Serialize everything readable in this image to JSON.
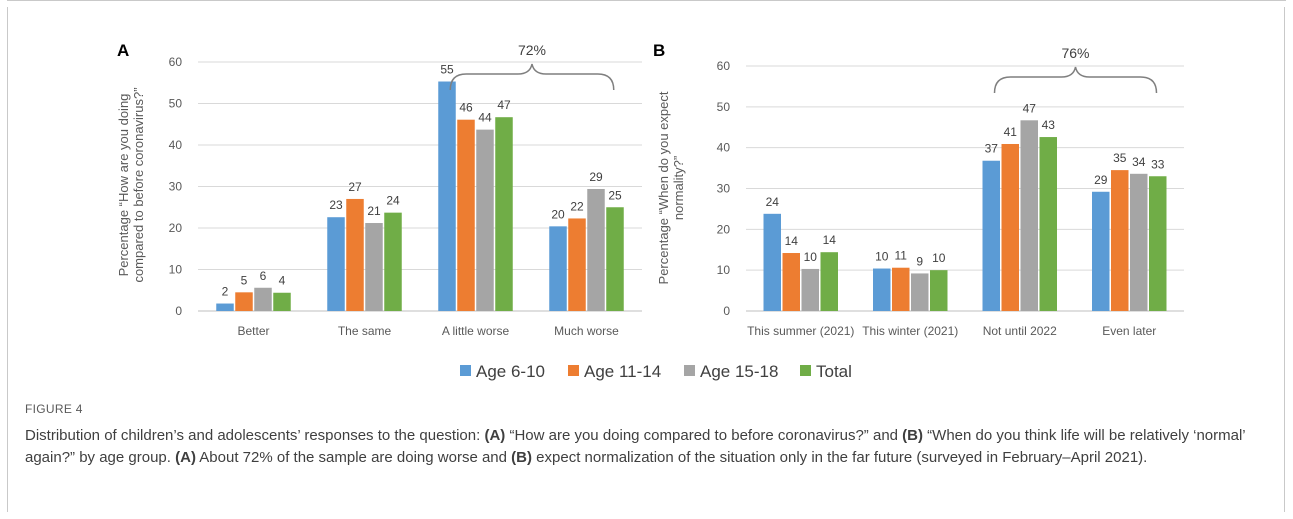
{
  "colors": {
    "series": [
      "#5b9bd5",
      "#ed7d31",
      "#a5a5a5",
      "#70ad47"
    ],
    "grid": "#d9d9d9",
    "axis": "#595959",
    "brace": "#7f7f7f"
  },
  "legend": [
    "Age 6-10",
    "Age 11-14",
    "Age 15-18",
    "Total"
  ],
  "chart_data": [
    {
      "type": "bar",
      "panel": "A",
      "ylabel_lines": [
        "Percentage “How are you doing",
        "compared to before coronavirus?”"
      ],
      "categories": [
        "Better",
        "The same",
        "A little worse",
        "Much worse"
      ],
      "ylim": [
        0,
        60
      ],
      "yticks": [
        0,
        10,
        20,
        30,
        40,
        50,
        60
      ],
      "series": [
        {
          "name": "Age 6-10",
          "values": [
            1.8,
            22.6,
            55.3,
            20.4
          ],
          "labels": [
            "2",
            "23",
            "55",
            "20"
          ]
        },
        {
          "name": "Age 11-14",
          "values": [
            4.5,
            27.0,
            46.1,
            22.3
          ],
          "labels": [
            "5",
            "27",
            "46",
            "22"
          ]
        },
        {
          "name": "Age 15-18",
          "values": [
            5.6,
            21.2,
            43.7,
            29.4
          ],
          "labels": [
            "6",
            "21",
            "44",
            "29"
          ]
        },
        {
          "name": "Total",
          "values": [
            4.4,
            23.7,
            46.7,
            25.0
          ],
          "labels": [
            "4",
            "24",
            "47",
            "25"
          ]
        }
      ],
      "bracket": {
        "label": "72%",
        "from_category": 2,
        "to_category": 3
      }
    },
    {
      "type": "bar",
      "panel": "B",
      "ylabel_lines": [
        "Percentage “When do you expect",
        "normality?”"
      ],
      "categories": [
        "This summer (2021)",
        "This winter (2021)",
        "Not until 2022",
        "Even later"
      ],
      "ylim": [
        0,
        60
      ],
      "yticks": [
        0,
        10,
        20,
        30,
        40,
        50,
        60
      ],
      "series": [
        {
          "name": "Age 6-10",
          "values": [
            23.8,
            10.4,
            36.8,
            29.2
          ],
          "labels": [
            "24",
            "10",
            "37",
            "29"
          ]
        },
        {
          "name": "Age 11-14",
          "values": [
            14.2,
            10.6,
            40.9,
            34.5
          ],
          "labels": [
            "14",
            "11",
            "41",
            "35"
          ]
        },
        {
          "name": "Age 15-18",
          "values": [
            10.3,
            9.2,
            46.7,
            33.6
          ],
          "labels": [
            "10",
            "9",
            "47",
            "34"
          ]
        },
        {
          "name": "Total",
          "values": [
            14.4,
            10.0,
            42.6,
            33.0
          ],
          "labels": [
            "14",
            "10",
            "43",
            "33"
          ]
        }
      ],
      "bracket": {
        "label": "76%",
        "from_category": 2,
        "to_category": 3
      }
    }
  ],
  "figure": {
    "label": "FIGURE 4",
    "caption_parts": [
      {
        "text": "Distribution of children’s and adolescents’ responses to the question: ",
        "bold": false
      },
      {
        "text": "(A)",
        "bold": true
      },
      {
        "text": " “How are you doing compared to before coronavirus?” and ",
        "bold": false
      },
      {
        "text": "(B)",
        "bold": true
      },
      {
        "text": " “When do you think life will be relatively ‘normal’ again?” by age group. ",
        "bold": false
      },
      {
        "text": "(A)",
        "bold": true
      },
      {
        "text": " About 72% of the sample are doing worse and ",
        "bold": false
      },
      {
        "text": "(B)",
        "bold": true
      },
      {
        "text": " expect normalization of the situation only in the far future (surveyed in February–April 2021).",
        "bold": false
      }
    ]
  }
}
